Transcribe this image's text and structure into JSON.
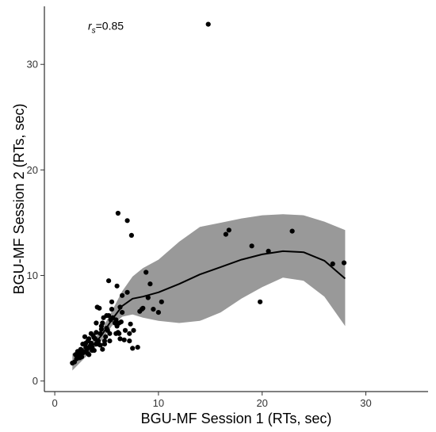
{
  "chart_data": {
    "type": "scatter",
    "xlabel": "BGU-MF Session 1 (RTs, sec)",
    "ylabel": "BGU-MF Session 2 (RTs, sec)",
    "xlim": [
      -1,
      36
    ],
    "ylim": [
      -1,
      35.5
    ],
    "xticks": [
      0,
      10,
      20,
      30
    ],
    "yticks": [
      0,
      10,
      20,
      30
    ],
    "grid": false,
    "annotation": {
      "var": "r",
      "sub": "s",
      "value": "=0.85",
      "x": 3.2,
      "y": 33.3
    },
    "colors": {
      "points": "#000000",
      "band": "#999999",
      "line": "#000000",
      "axis": "#333333"
    },
    "series": [
      {
        "kind": "points",
        "x": [
          1.7,
          1.9,
          2.0,
          2.1,
          2.2,
          2.3,
          2.4,
          2.5,
          2.5,
          2.6,
          2.7,
          2.8,
          2.9,
          3.0,
          3.0,
          3.1,
          3.2,
          3.3,
          3.3,
          3.4,
          3.5,
          3.5,
          3.6,
          3.7,
          3.8,
          3.9,
          4.0,
          4.0,
          4.1,
          4.2,
          4.3,
          4.4,
          4.5,
          4.5,
          4.6,
          4.7,
          4.8,
          4.9,
          5.0,
          5.0,
          5.1,
          5.2,
          5.3,
          5.4,
          5.5,
          5.6,
          5.8,
          5.9,
          6.0,
          6.1,
          6.2,
          6.3,
          6.5,
          6.5,
          6.7,
          6.8,
          7.0,
          7.2,
          7.3,
          7.5,
          8.0,
          8.2,
          8.4,
          8.5,
          9.0,
          9.2,
          9.5,
          10.0,
          10.3,
          2.2,
          2.6,
          3.0,
          3.6,
          4.2,
          4.6,
          4.4,
          4.0,
          5.3,
          5.5,
          5.2,
          6.0,
          6.4,
          7.2,
          7.0,
          8.8,
          3.8,
          3.2,
          4.8,
          6.1,
          6.3,
          5.9,
          6.2,
          7.4,
          7.6,
          16.5,
          16.8,
          19.0,
          20.6,
          22.9,
          26.8,
          27.9,
          19.8,
          14.8
        ],
        "y": [
          1.7,
          1.8,
          2.5,
          2.1,
          2.8,
          2.4,
          2.2,
          3.0,
          2.6,
          2.9,
          3.5,
          2.7,
          4.2,
          3.2,
          2.8,
          3.0,
          3.8,
          2.5,
          4.0,
          3.3,
          4.5,
          3.6,
          3.2,
          4.3,
          2.9,
          4.0,
          3.5,
          4.6,
          7.0,
          3.8,
          6.9,
          4.5,
          5.2,
          4.9,
          5.5,
          6.0,
          3.5,
          4.2,
          5.0,
          6.2,
          4.8,
          9.5,
          3.8,
          5.8,
          7.5,
          6.0,
          5.5,
          4.5,
          5.2,
          4.6,
          4.5,
          4.0,
          6.5,
          8.1,
          3.9,
          4.8,
          8.4,
          3.8,
          5.4,
          3.1,
          3.2,
          6.6,
          6.8,
          6.9,
          7.9,
          9.2,
          6.8,
          6.5,
          7.5,
          2.3,
          2.3,
          3.6,
          2.9,
          3.5,
          3.0,
          3.4,
          5.5,
          4.5,
          6.8,
          6.2,
          9.0,
          5.6,
          4.5,
          15.2,
          10.3,
          4.1,
          2.6,
          3.8,
          15.9,
          7.0,
          5.8,
          5.5,
          13.8,
          4.8,
          13.9,
          14.3,
          12.8,
          12.3,
          14.2,
          11.1,
          11.2,
          7.5,
          33.8
        ]
      },
      {
        "kind": "smooth",
        "x": [
          1.7,
          2.5,
          3.5,
          4.5,
          5.5,
          6.5,
          7.5,
          8.5,
          10,
          12,
          14,
          16,
          18,
          20,
          22,
          24,
          26,
          28
        ],
        "y": [
          1.7,
          2.3,
          3.2,
          4.3,
          5.8,
          7.1,
          7.8,
          8.0,
          8.4,
          9.2,
          10.1,
          10.8,
          11.5,
          12.0,
          12.3,
          12.2,
          11.4,
          9.7
        ],
        "lower": [
          1.0,
          1.8,
          2.8,
          3.8,
          5.2,
          6.1,
          6.3,
          6.0,
          5.7,
          5.5,
          5.7,
          6.5,
          7.8,
          8.9,
          9.8,
          9.5,
          8.0,
          5.2
        ],
        "upper": [
          2.6,
          3.0,
          3.7,
          4.8,
          6.6,
          8.5,
          9.9,
          10.7,
          11.5,
          13.2,
          14.6,
          15.0,
          15.4,
          15.7,
          15.8,
          15.7,
          15.1,
          14.3
        ]
      }
    ]
  }
}
